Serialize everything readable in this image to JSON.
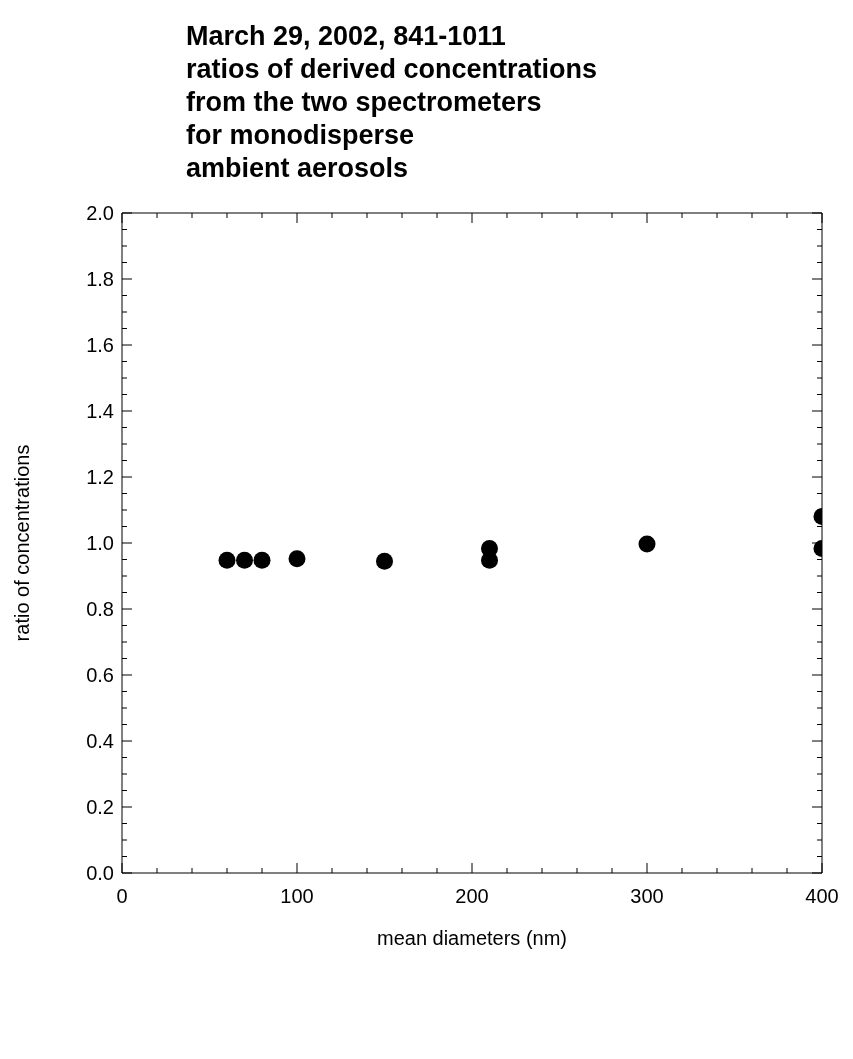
{
  "chart_data": {
    "type": "scatter",
    "title": "March 29, 2002, 841-1011\nratios of derived concentrations\nfrom the two spectrometers\nfor monodisperse\nambient aerosols",
    "xlabel": "mean diameters (nm)",
    "ylabel": "ratio of concentrations",
    "x": [
      60,
      70,
      80,
      100,
      150,
      210,
      210,
      300,
      400,
      400
    ],
    "series": [
      {
        "color": "#000000",
        "values": [
          0.948,
          0.948,
          0.948,
          0.952,
          0.945,
          0.983,
          0.948,
          0.997,
          1.08,
          0.983
        ]
      }
    ],
    "marker": "circle",
    "grid": false,
    "legend": false,
    "xlim": [
      0,
      400
    ],
    "xticks": [
      0,
      {
        "value": 20,
        "label": null
      },
      {
        "value": 40,
        "label": null
      },
      {
        "value": 60,
        "label": null
      },
      {
        "value": 80,
        "label": null
      },
      100,
      {
        "value": 120,
        "label": null
      },
      {
        "value": 140,
        "label": null
      },
      {
        "value": 160,
        "label": null
      },
      {
        "value": 180,
        "label": null
      },
      200,
      {
        "value": 220,
        "label": null
      },
      {
        "value": 240,
        "label": null
      },
      {
        "value": 260,
        "label": null
      },
      {
        "value": 280,
        "label": null
      },
      300,
      {
        "value": 320,
        "label": null
      },
      {
        "value": 340,
        "label": null
      },
      {
        "value": 360,
        "label": null
      },
      {
        "value": 380,
        "label": null
      },
      400
    ],
    "ylim": [
      0,
      2
    ],
    "yticks": [
      {
        "value": 0,
        "label": "0.0"
      },
      {
        "value": 0.05,
        "label": null
      },
      {
        "value": 0.1,
        "label": null
      },
      {
        "value": 0.15,
        "label": null
      },
      {
        "value": 0.2,
        "label": "0.2"
      },
      {
        "value": 0.25,
        "label": null
      },
      {
        "value": 0.3,
        "label": null
      },
      {
        "value": 0.35,
        "label": null
      },
      {
        "value": 0.4,
        "label": "0.4"
      },
      {
        "value": 0.45,
        "label": null
      },
      {
        "value": 0.5,
        "label": null
      },
      {
        "value": 0.55,
        "label": null
      },
      {
        "value": 0.6,
        "label": "0.6"
      },
      {
        "value": 0.65,
        "label": null
      },
      {
        "value": 0.7,
        "label": null
      },
      {
        "value": 0.75,
        "label": null
      },
      {
        "value": 0.8,
        "label": "0.8"
      },
      {
        "value": 0.85,
        "label": null
      },
      {
        "value": 0.9,
        "label": null
      },
      {
        "value": 0.95,
        "label": null
      },
      {
        "value": 1,
        "label": "1.0"
      },
      {
        "value": 1.05,
        "label": null
      },
      {
        "value": 1.1,
        "label": null
      },
      {
        "value": 1.15,
        "label": null
      },
      {
        "value": 1.2,
        "label": "1.2"
      },
      {
        "value": 1.25,
        "label": null
      },
      {
        "value": 1.3,
        "label": null
      },
      {
        "value": 1.35,
        "label": null
      },
      {
        "value": 1.4,
        "label": "1.4"
      },
      {
        "value": 1.45,
        "label": null
      },
      {
        "value": 1.5,
        "label": null
      },
      {
        "value": 1.55,
        "label": null
      },
      {
        "value": 1.6,
        "label": "1.6"
      },
      {
        "value": 1.65,
        "label": null
      },
      {
        "value": 1.7,
        "label": null
      },
      {
        "value": 1.75,
        "label": null
      },
      {
        "value": 1.8,
        "label": "1.8"
      },
      {
        "value": 1.85,
        "label": null
      },
      {
        "value": 1.9,
        "label": null
      },
      {
        "value": 1.95,
        "label": null
      },
      {
        "value": 2,
        "label": "2.0"
      }
    ]
  }
}
